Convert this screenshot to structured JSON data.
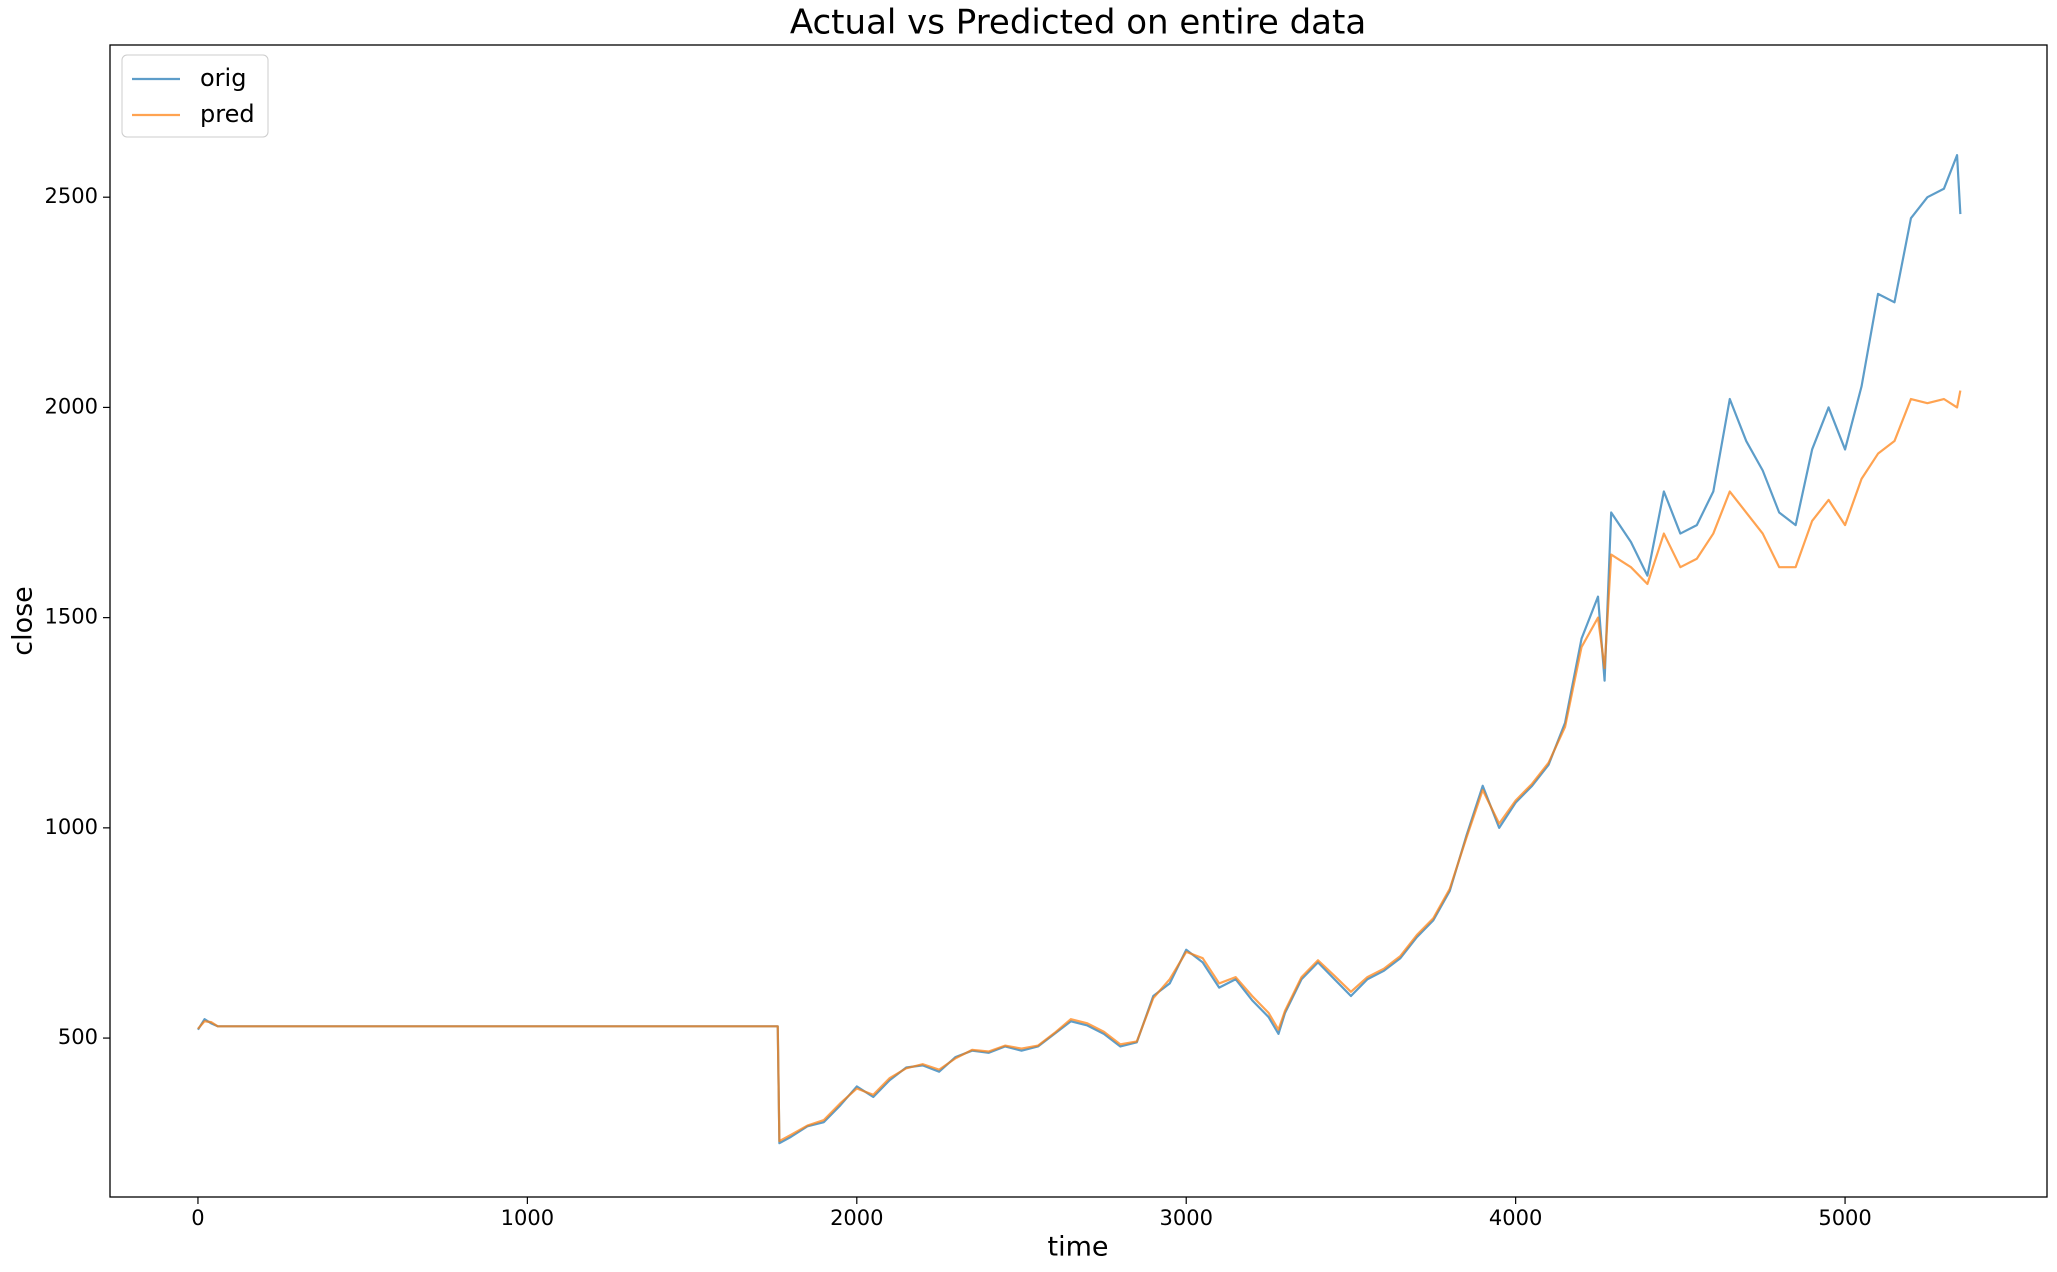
{
  "chart_data": {
    "type": "line",
    "title": "Actual vs Predicted on entire data",
    "x_label": "time",
    "y_label": "close",
    "x": [
      0,
      20,
      40,
      60,
      1760,
      1765,
      1800,
      1850,
      1900,
      1950,
      2000,
      2050,
      2100,
      2150,
      2200,
      2250,
      2300,
      2350,
      2400,
      2450,
      2500,
      2550,
      2600,
      2650,
      2700,
      2750,
      2800,
      2850,
      2900,
      2950,
      3000,
      3050,
      3100,
      3150,
      3200,
      3250,
      3280,
      3300,
      3350,
      3400,
      3450,
      3500,
      3550,
      3600,
      3650,
      3700,
      3750,
      3800,
      3850,
      3900,
      3950,
      4000,
      4050,
      4100,
      4150,
      4200,
      4250,
      4270,
      4290,
      4350,
      4400,
      4450,
      4500,
      4550,
      4600,
      4650,
      4700,
      4750,
      4800,
      4850,
      4900,
      4950,
      5000,
      5050,
      5100,
      5150,
      5200,
      5250,
      5300,
      5340,
      5350
    ],
    "series": [
      {
        "name": "orig",
        "color": "#1f77b4",
        "values": [
          520,
          545,
          535,
          528,
          528,
          250,
          265,
          290,
          300,
          340,
          385,
          360,
          400,
          430,
          435,
          420,
          455,
          470,
          465,
          480,
          470,
          480,
          510,
          540,
          530,
          510,
          480,
          490,
          600,
          630,
          710,
          680,
          620,
          640,
          590,
          550,
          510,
          560,
          640,
          680,
          640,
          600,
          640,
          660,
          690,
          740,
          780,
          850,
          980,
          1100,
          1000,
          1060,
          1100,
          1150,
          1250,
          1450,
          1550,
          1350,
          1750,
          1680,
          1600,
          1800,
          1700,
          1720,
          1800,
          2020,
          1920,
          1850,
          1750,
          1720,
          1900,
          2000,
          1900,
          2050,
          2270,
          2250,
          2450,
          2500,
          2520,
          2600,
          2460
        ]
      },
      {
        "name": "pred",
        "color": "#ff7f0e",
        "values": [
          522,
          540,
          538,
          528,
          528,
          255,
          270,
          292,
          305,
          345,
          380,
          365,
          405,
          428,
          438,
          425,
          452,
          472,
          468,
          482,
          475,
          482,
          512,
          545,
          535,
          515,
          485,
          492,
          595,
          640,
          705,
          690,
          630,
          645,
          600,
          560,
          520,
          565,
          645,
          685,
          648,
          610,
          645,
          665,
          695,
          745,
          785,
          855,
          975,
          1090,
          1010,
          1065,
          1105,
          1155,
          1240,
          1430,
          1500,
          1380,
          1650,
          1620,
          1580,
          1700,
          1620,
          1640,
          1700,
          1800,
          1750,
          1700,
          1620,
          1620,
          1730,
          1780,
          1720,
          1830,
          1890,
          1920,
          2020,
          2010,
          2020,
          2000,
          2040
        ]
      }
    ],
    "xlim": [
      -267,
      5613
    ],
    "ylim": [
      122,
      2862
    ],
    "xticks": [
      0,
      1000,
      2000,
      3000,
      4000,
      5000
    ],
    "yticks": [
      500,
      1000,
      1500,
      2000,
      2500
    ],
    "legend": "upper left"
  }
}
